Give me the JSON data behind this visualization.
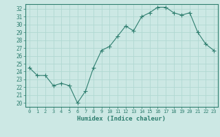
{
  "x": [
    0,
    1,
    2,
    3,
    4,
    5,
    6,
    7,
    8,
    9,
    10,
    11,
    12,
    13,
    14,
    15,
    16,
    17,
    18,
    19,
    20,
    21,
    22,
    23
  ],
  "y": [
    24.5,
    23.5,
    23.5,
    22.2,
    22.5,
    22.2,
    20.0,
    21.5,
    24.5,
    26.7,
    27.2,
    28.5,
    29.8,
    29.2,
    31.0,
    31.5,
    32.2,
    32.2,
    31.5,
    31.2,
    31.5,
    29.0,
    27.5,
    26.7
  ],
  "line_color": "#2d7d6e",
  "marker": "+",
  "marker_size": 4,
  "bg_color": "#cce8e4",
  "grid_color": "#b0d8d2",
  "xlabel": "Humidex (Indice chaleur)",
  "ylabel_ticks": [
    20,
    21,
    22,
    23,
    24,
    25,
    26,
    27,
    28,
    29,
    30,
    31,
    32
  ],
  "ylim": [
    19.5,
    32.6
  ],
  "xlim": [
    -0.5,
    23.5
  ]
}
